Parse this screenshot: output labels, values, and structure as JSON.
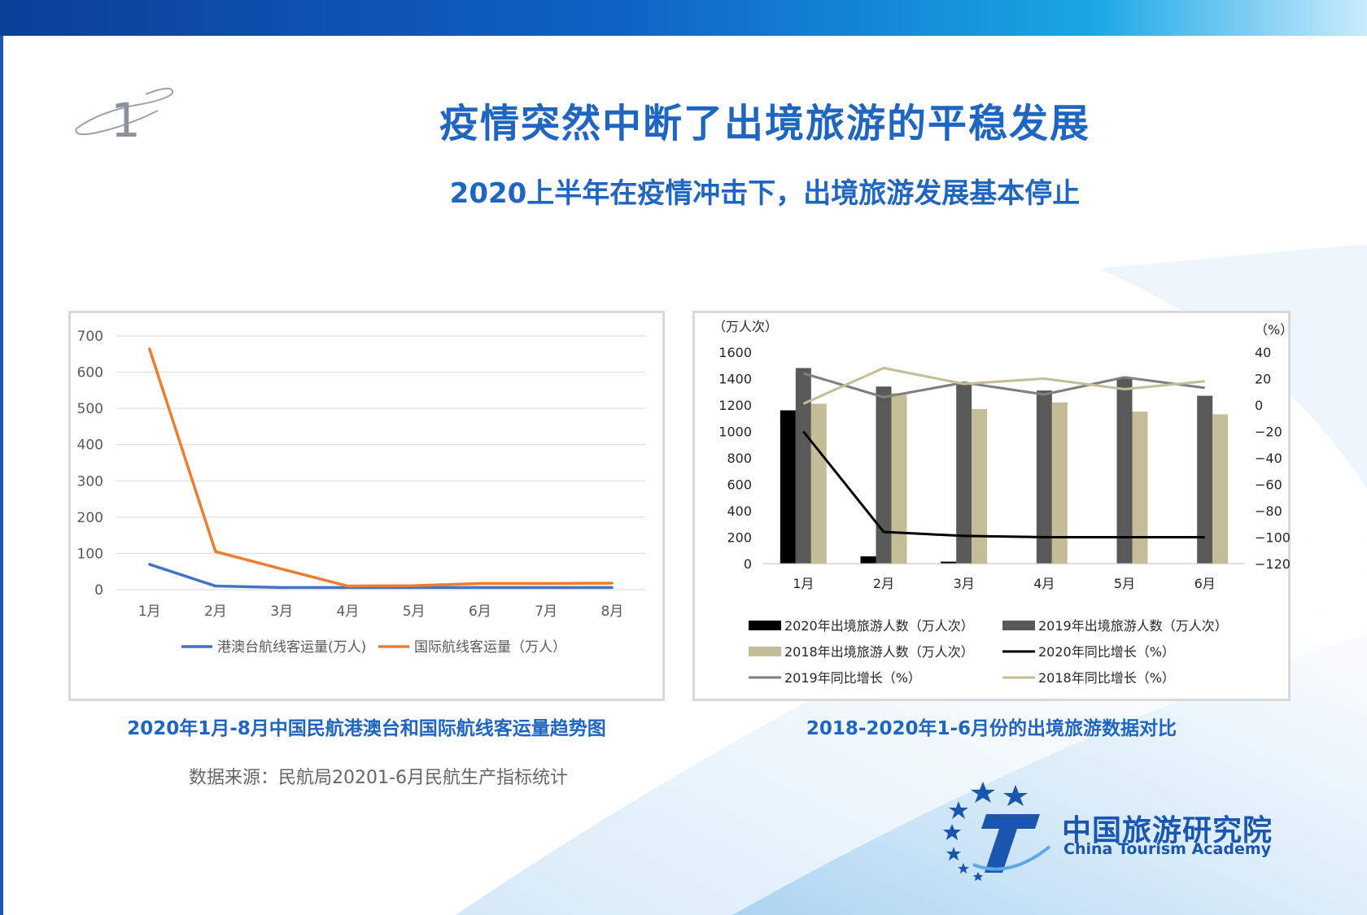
{
  "slide": {
    "number": "1",
    "title": "疫情突然中断了出境旅游的平稳发展",
    "subtitle": "2020上半年在疫情冲击下，出境旅游发展基本停止",
    "source": "数据来源：民航局20201-6月民航生产指标统计",
    "logo_cn": "中国旅游研究院",
    "logo_en": "China Tourism Academy",
    "colors": {
      "brand_blue": "#1f65c2",
      "top_bar": "#0f62c4"
    }
  },
  "chart_data": [
    {
      "type": "line",
      "title": "",
      "caption": "2020年1月-8月中国民航港澳台和国际航线客运量趋势图",
      "categories": [
        "1月",
        "2月",
        "3月",
        "4月",
        "5月",
        "6月",
        "7月",
        "8月"
      ],
      "series": [
        {
          "name": "港澳台航线客运量(万人)",
          "color": "#4472c4",
          "values": [
            70,
            10,
            6,
            6,
            6,
            6,
            6,
            6
          ]
        },
        {
          "name": "国际航线客运量（万人）",
          "color": "#ed7d31",
          "values": [
            665,
            105,
            57,
            10,
            11,
            17,
            17,
            18
          ]
        }
      ],
      "yticks": [
        "0",
        "100",
        "200",
        "300",
        "400",
        "500",
        "600",
        "700"
      ],
      "ylim": [
        0,
        700
      ],
      "grid": true,
      "legend": "bottom"
    },
    {
      "type": "bar",
      "title": "",
      "caption": "2018-2020年1-6月份的出境旅游数据对比",
      "y_left_unit": "（万人次）",
      "y_right_unit": "（%）",
      "categories": [
        "1月",
        "2月",
        "3月",
        "4月",
        "5月",
        "6月"
      ],
      "bar_series": [
        {
          "name": "2020年出境旅游人数（万人次）",
          "color": "#000000",
          "values": [
            1160,
            55,
            15,
            0,
            0,
            0
          ]
        },
        {
          "name": "2019年出境旅游人数（万人次）",
          "color": "#595959",
          "values": [
            1480,
            1340,
            1360,
            1310,
            1400,
            1270
          ]
        },
        {
          "name": "2018年出境旅游人数（万人次）",
          "color": "#c4bd97",
          "values": [
            1210,
            1290,
            1170,
            1220,
            1150,
            1130
          ]
        }
      ],
      "line_series": [
        {
          "name": "2020年同比增长（%）",
          "color": "#000000",
          "values": [
            -20,
            -96,
            -99,
            -100,
            -100,
            -100
          ]
        },
        {
          "name": "2019年同比增长（%）",
          "color": "#7f7f7f",
          "values": [
            24,
            6,
            17,
            8,
            21,
            13
          ]
        },
        {
          "name": "2018年同比增长（%）",
          "color": "#c4bd97",
          "values": [
            1,
            28,
            16,
            20,
            12,
            18
          ]
        }
      ],
      "yticks_left": [
        "0",
        "200",
        "400",
        "600",
        "800",
        "1000",
        "1200",
        "1400",
        "1600"
      ],
      "yticks_right": [
        "−120",
        "−100",
        "−80",
        "−60",
        "−40",
        "−20",
        "0",
        "20",
        "40"
      ],
      "ylim_left": [
        0,
        1600
      ],
      "ylim_right": [
        -120,
        40
      ],
      "legend": "bottom"
    }
  ]
}
